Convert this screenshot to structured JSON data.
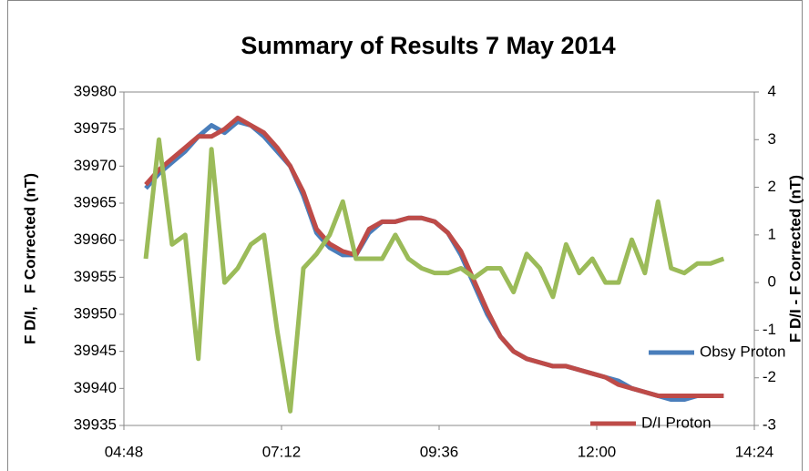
{
  "chart_data": {
    "type": "line",
    "title": "Summary of Results 7 May 2014",
    "y_label": "F D/I,   F Corrected (nT)",
    "y2_label": "F D/I - F Corrected (nT)",
    "x": [
      308,
      320,
      332,
      344,
      356,
      368,
      380,
      392,
      404,
      416,
      428,
      440,
      452,
      464,
      476,
      488,
      500,
      512,
      524,
      536,
      548,
      560,
      572,
      584,
      596,
      608,
      620,
      632,
      644,
      656,
      668,
      680,
      692,
      704,
      716,
      728,
      740,
      752,
      764,
      776,
      788,
      800,
      812,
      824,
      836
    ],
    "series": [
      {
        "name": "Obsy Proton",
        "color": "#4a7ebb",
        "values": [
          39967,
          39969,
          39970.5,
          39972,
          39974,
          39975.5,
          39974.5,
          39976,
          39975.5,
          39974,
          39972,
          39970,
          39966,
          39961,
          39959,
          39958,
          39958,
          39961,
          39962.5,
          39962.5,
          39963,
          39963,
          39962.5,
          39961,
          39958,
          39954,
          39950,
          39947,
          39945,
          39944,
          39943.5,
          39943,
          39943,
          39942.5,
          39942,
          39941.5,
          39941,
          39940,
          39939.5,
          39939,
          39938.5,
          39938.5,
          39939,
          39939,
          39939
        ]
      },
      {
        "name": "D/I Proton",
        "color": "#be4b48",
        "values": [
          39967.5,
          39969.5,
          39971,
          39972.5,
          39974,
          39974,
          39975,
          39976.5,
          39975.5,
          39974.5,
          39972.5,
          39970,
          39966.5,
          39961.5,
          39959.5,
          39958.5,
          39958,
          39961.5,
          39962.5,
          39962.5,
          39963,
          39963,
          39962.5,
          39961,
          39958.5,
          39954.5,
          39950.5,
          39947,
          39945,
          39944,
          39943.5,
          39943,
          39943,
          39942.5,
          39942,
          39941.5,
          39940.5,
          39940,
          39939.5,
          39939,
          39939,
          39939,
          39939,
          39939,
          39939
        ]
      },
      {
        "color": "#9bbb59",
        "axis": "y2",
        "values": [
          0.5,
          3,
          0.8,
          1,
          -1.6,
          2.8,
          0,
          0.3,
          0.8,
          1,
          -1,
          -2.7,
          0.3,
          0.6,
          1,
          1.7,
          0.5,
          0.5,
          0.5,
          1,
          0.5,
          0.3,
          0.2,
          0.2,
          0.3,
          0.1,
          0.3,
          0.3,
          -0.2,
          0.6,
          0.3,
          -0.3,
          0.8,
          0.2,
          0.5,
          0,
          0,
          0.9,
          0.2,
          1.7,
          0.3,
          0.2,
          0.4,
          0.4,
          0.5
        ]
      }
    ],
    "xlim": [
      288,
      864
    ],
    "xticks": [
      {
        "value": 288,
        "label": "04:48"
      },
      {
        "value": 432,
        "label": "07:12"
      },
      {
        "value": 576,
        "label": "09:36"
      },
      {
        "value": 720,
        "label": "12:00"
      },
      {
        "value": 864,
        "label": "14:24"
      }
    ],
    "ylim": [
      39935,
      39980
    ],
    "yticks": [
      39935,
      39940,
      39945,
      39950,
      39955,
      39960,
      39965,
      39970,
      39975,
      39980
    ],
    "y2lim": [
      -3,
      4
    ],
    "y2ticks": [
      -3,
      -2,
      -1,
      0,
      1,
      2,
      3,
      4
    ],
    "legend": "right"
  }
}
